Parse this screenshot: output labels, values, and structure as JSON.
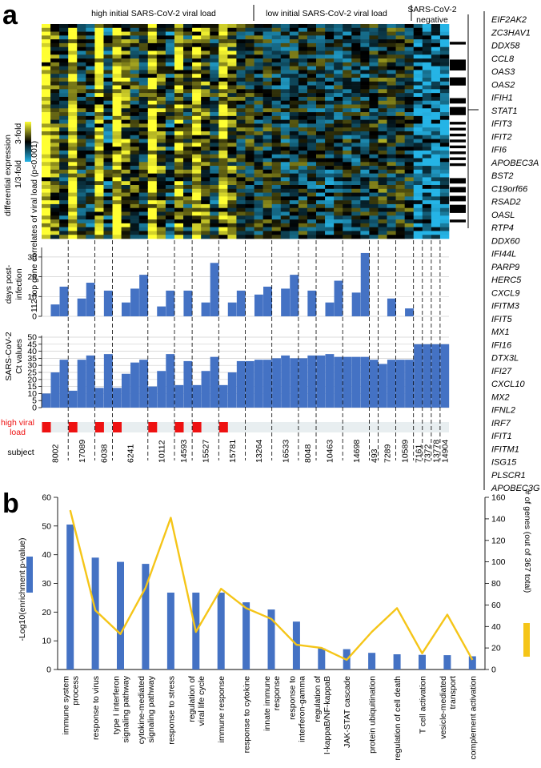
{
  "colors": {
    "bar": "#4472c4",
    "line": "#f5c518",
    "red": "#ee1111",
    "track": "#e8eef0",
    "heat_low": "#25b4e6",
    "heat_mid": "#000000",
    "heat_high": "#ffff33"
  },
  "panel_a": {
    "label": "a",
    "groups": [
      "high initial SARS-CoV-2 viral load",
      "low initial SARS-CoV-2 viral load",
      "SARS-CoV-2 negative"
    ],
    "heatmap": {
      "ylabel": "112 top gene correlates of viral load (p<0.001)",
      "legend_title": "differential expression",
      "legend_high": "3-fold",
      "legend_low": "1/3-fold",
      "gene_list": [
        "EIF2AK2",
        "ZC3HAV1",
        "DDX58",
        "CCL8",
        "OAS3",
        "OAS2",
        "IFIH1",
        "STAT1",
        "IFIT3",
        "IFIT2",
        "IFI6",
        "APOBEC3A",
        "BST2",
        "C19orf66",
        "RSAD2",
        "OASL",
        "RTP4",
        "DDX60",
        "IFI44L",
        "PARP9",
        "HERC5",
        "CXCL9",
        "IFITM3",
        "IFIT5",
        "MX1",
        "IFI16",
        "DTX3L",
        "IFI27",
        "CXCL10",
        "MX2",
        "IFNL2",
        "IRF7",
        "IFIT1",
        "IFITM1",
        "ISG15",
        "PLSCR1",
        "APOBEC3G"
      ]
    },
    "days": {
      "ylabel": "days post-infection",
      "ticks": [
        "0",
        "10",
        "20",
        "30"
      ],
      "ylim": [
        0,
        34
      ]
    },
    "ct": {
      "ylabel": "SARS-CoV-2 Ct values",
      "ticks": [
        "0",
        "5",
        "10",
        "15",
        "20",
        "25",
        "30",
        "35",
        "40",
        "45",
        "50"
      ],
      "ylim": [
        0,
        50
      ]
    },
    "high_load_label": "high viral load",
    "subject_label": "subject",
    "subjects": [
      {
        "id": "8002",
        "ct": [
          10,
          25,
          34
        ],
        "days": [
          0,
          6,
          15
        ],
        "high": true
      },
      {
        "id": "17089",
        "ct": [
          12,
          34,
          37
        ],
        "days": [
          0,
          9,
          17
        ],
        "high": true
      },
      {
        "id": "6038",
        "ct": [
          14,
          38
        ],
        "days": [
          0,
          13
        ],
        "high": true
      },
      {
        "id": "6241",
        "ct": [
          14,
          24,
          32,
          34
        ],
        "days": [
          0,
          7,
          14,
          21
        ],
        "high": true
      },
      {
        "id": "10112",
        "ct": [
          15,
          26,
          38
        ],
        "days": [
          0,
          5,
          13
        ],
        "high": true
      },
      {
        "id": "14593",
        "ct": [
          16,
          33
        ],
        "days": [
          0,
          13
        ],
        "high": true
      },
      {
        "id": "15527",
        "ct": [
          16,
          26,
          36
        ],
        "days": [
          0,
          7,
          27
        ],
        "high": true
      },
      {
        "id": "15781",
        "ct": [
          16,
          25,
          33
        ],
        "days": [
          0,
          7,
          13
        ],
        "high": true
      },
      {
        "id": "13264",
        "ct": [
          33,
          34,
          34
        ],
        "days": [
          0,
          11,
          15
        ],
        "high": false
      },
      {
        "id": "16533",
        "ct": [
          35,
          37,
          35
        ],
        "days": [
          0,
          14,
          21
        ],
        "high": false
      },
      {
        "id": "8048",
        "ct": [
          35,
          37
        ],
        "days": [
          0,
          13
        ],
        "high": false
      },
      {
        "id": "10463",
        "ct": [
          37,
          38,
          36
        ],
        "days": [
          0,
          7,
          18
        ],
        "high": false
      },
      {
        "id": "14698",
        "ct": [
          36,
          36,
          36
        ],
        "days": [
          0,
          12,
          32
        ],
        "high": false
      },
      {
        "id": "493",
        "ct": [
          34
        ],
        "days": [
          0
        ],
        "high": false
      },
      {
        "id": "7289",
        "ct": [
          31,
          34
        ],
        "days": [
          0,
          9
        ],
        "high": false
      },
      {
        "id": "10589",
        "ct": [
          34,
          34
        ],
        "days": [
          0,
          4
        ],
        "high": false
      },
      {
        "id": "7161",
        "ct": [
          45
        ],
        "days": [
          0
        ],
        "high": false
      },
      {
        "id": "7372",
        "ct": [
          45
        ],
        "days": [
          0
        ],
        "high": false
      },
      {
        "id": "13778",
        "ct": [
          45
        ],
        "days": [
          0
        ],
        "high": false
      },
      {
        "id": "14904",
        "ct": [
          45
        ],
        "days": [
          0
        ],
        "high": false
      }
    ]
  },
  "panel_b": {
    "label": "b",
    "chart_data": {
      "type": "bar",
      "title": "",
      "ylabel": "-Log10(enrichment p-value)",
      "y2label": "# of genes (out of 367 total)",
      "ylim": [
        0,
        60
      ],
      "y2lim": [
        0,
        160
      ],
      "yticks": [
        "0",
        "10",
        "20",
        "30",
        "40",
        "50",
        "60"
      ],
      "y2ticks": [
        "0",
        "20",
        "40",
        "60",
        "80",
        "100",
        "120",
        "140",
        "160"
      ],
      "categories": [
        "immune system process",
        "response to virus",
        "type I interferon signaling pathway",
        "cytokine-mediated signaling pathway",
        "response to stress",
        "regulation of viral life cycle",
        "immune response",
        "response to cytokine",
        "innate immune response",
        "response to interferon-gamma",
        "regulation of I-kappaB/NF-kappaB",
        "JAK-STAT cascade",
        "protein ubiquitination",
        "regulation of cell death",
        "T cell activation",
        "vesicle-mediated transport",
        "complement activation"
      ],
      "category_lines": [
        [
          "immune system",
          "process"
        ],
        [
          "response to virus"
        ],
        [
          "type I interferon",
          "signaling pathway"
        ],
        [
          "cytokine-mediated",
          "signaling pathway"
        ],
        [
          "response to stress"
        ],
        [
          "regulation of",
          "viral life cycle"
        ],
        [
          "immune response"
        ],
        [
          "response to cytokine"
        ],
        [
          "innate immune",
          "response"
        ],
        [
          "response to",
          "interferon-gamma"
        ],
        [
          "regulation of",
          "I-kappaB/NF-kappaB"
        ],
        [
          "JAK-STAT cascade"
        ],
        [
          "protein ubiquitination"
        ],
        [
          "regulation of cell death"
        ],
        [
          "T cell activation"
        ],
        [
          "vesicle-mediated",
          "transport"
        ],
        [
          "complement activation"
        ]
      ],
      "series": [
        {
          "name": "-Log10(enrichment p-value)",
          "type": "bar",
          "values": [
            50.5,
            39,
            37.5,
            36.8,
            26.8,
            26.8,
            26.8,
            23.4,
            20.9,
            16.7,
            7.4,
            7.1,
            5.8,
            5.3,
            5.1,
            5.0,
            4.6
          ]
        },
        {
          "name": "# of genes (out of 367 total)",
          "type": "line",
          "values": [
            148,
            55,
            33,
            76,
            141,
            35,
            75,
            57,
            47,
            23,
            20,
            9,
            35,
            57,
            15,
            51,
            9
          ]
        }
      ]
    }
  }
}
